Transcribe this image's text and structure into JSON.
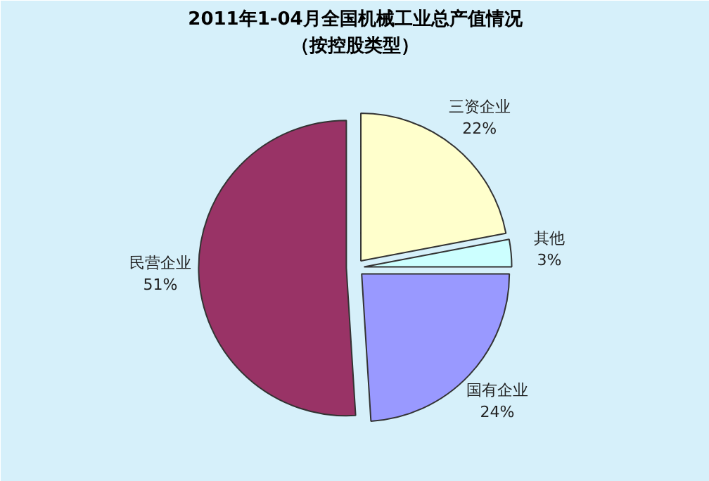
{
  "chart_data": {
    "type": "pie",
    "title": "2011年1-04月全国机械工业总产值情况",
    "subtitle": "（按控股类型）",
    "categories": [
      "三资企业",
      "其他",
      "国有企业",
      "民营企业"
    ],
    "values": [
      22,
      3,
      24,
      51
    ],
    "value_labels": [
      "22%",
      "3%",
      "24%",
      "51%"
    ],
    "colors": [
      "#ffffcc",
      "#ccffff",
      "#9999ff",
      "#993366"
    ]
  }
}
